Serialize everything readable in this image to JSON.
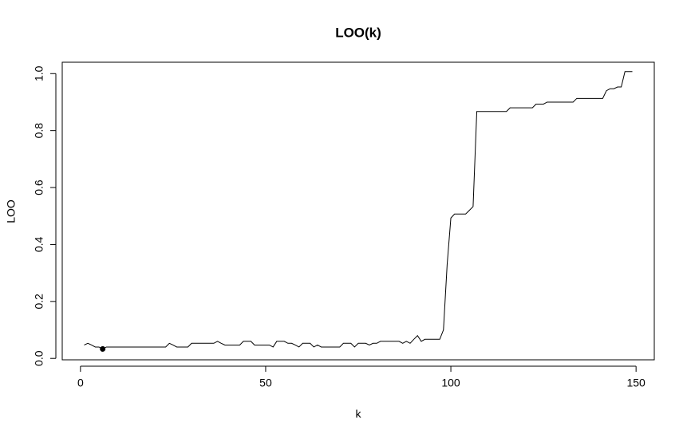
{
  "chart_data": {
    "type": "line",
    "title": "LOO(k)",
    "xlabel": "k",
    "ylabel": "LOO",
    "x": [
      1,
      2,
      3,
      4,
      5,
      6,
      7,
      8,
      9,
      10,
      11,
      12,
      13,
      14,
      15,
      16,
      17,
      18,
      19,
      20,
      21,
      22,
      23,
      24,
      25,
      26,
      27,
      28,
      29,
      30,
      31,
      32,
      33,
      34,
      35,
      36,
      37,
      38,
      39,
      40,
      41,
      42,
      43,
      44,
      45,
      46,
      47,
      48,
      49,
      50,
      51,
      52,
      53,
      54,
      55,
      56,
      57,
      58,
      59,
      60,
      61,
      62,
      63,
      64,
      65,
      66,
      67,
      68,
      69,
      70,
      71,
      72,
      73,
      74,
      75,
      76,
      77,
      78,
      79,
      80,
      81,
      82,
      83,
      84,
      85,
      86,
      87,
      88,
      89,
      90,
      91,
      92,
      93,
      94,
      95,
      96,
      97,
      98,
      99,
      100,
      101,
      102,
      103,
      104,
      105,
      106,
      107,
      108,
      109,
      110,
      111,
      112,
      113,
      114,
      115,
      116,
      117,
      118,
      119,
      120,
      121,
      122,
      123,
      124,
      125,
      126,
      127,
      128,
      129,
      130,
      131,
      132,
      133,
      134,
      135,
      136,
      137,
      138,
      139,
      140,
      141,
      142,
      143,
      144,
      145,
      146,
      147,
      148,
      149
    ],
    "series": [
      {
        "color": "#000000",
        "values": [
          0.047,
          0.053,
          0.047,
          0.04,
          0.04,
          0.033,
          0.04,
          0.04,
          0.04,
          0.04,
          0.04,
          0.04,
          0.04,
          0.04,
          0.04,
          0.04,
          0.04,
          0.04,
          0.04,
          0.04,
          0.04,
          0.04,
          0.04,
          0.053,
          0.047,
          0.04,
          0.04,
          0.04,
          0.04,
          0.053,
          0.053,
          0.053,
          0.053,
          0.053,
          0.053,
          0.053,
          0.06,
          0.053,
          0.047,
          0.047,
          0.047,
          0.047,
          0.047,
          0.06,
          0.06,
          0.06,
          0.047,
          0.047,
          0.047,
          0.047,
          0.047,
          0.04,
          0.06,
          0.06,
          0.06,
          0.053,
          0.053,
          0.047,
          0.04,
          0.053,
          0.053,
          0.053,
          0.04,
          0.047,
          0.04,
          0.04,
          0.04,
          0.04,
          0.04,
          0.04,
          0.053,
          0.053,
          0.053,
          0.04,
          0.053,
          0.053,
          0.053,
          0.047,
          0.053,
          0.053,
          0.06,
          0.06,
          0.06,
          0.06,
          0.06,
          0.06,
          0.053,
          0.06,
          0.053,
          0.067,
          0.08,
          0.06,
          0.067,
          0.067,
          0.067,
          0.067,
          0.067,
          0.1,
          0.33,
          0.493,
          0.507,
          0.507,
          0.507,
          0.507,
          0.52,
          0.533,
          0.867,
          0.867,
          0.867,
          0.867,
          0.867,
          0.867,
          0.867,
          0.867,
          0.867,
          0.88,
          0.88,
          0.88,
          0.88,
          0.88,
          0.88,
          0.88,
          0.893,
          0.893,
          0.893,
          0.9,
          0.9,
          0.9,
          0.9,
          0.9,
          0.9,
          0.9,
          0.9,
          0.913,
          0.913,
          0.913,
          0.913,
          0.913,
          0.913,
          0.913,
          0.913,
          0.94,
          0.947,
          0.947,
          0.953,
          0.953,
          1.007,
          1.007,
          1.007
        ]
      }
    ],
    "point": {
      "x": 6,
      "y": 0.033,
      "color": "#000000"
    },
    "xlim": [
      -4.92,
      154.92
    ],
    "ylim": [
      -0.005,
      1.04
    ],
    "xticks": [
      0,
      50,
      100,
      150
    ],
    "yticks": [
      {
        "value": 0,
        "label": "0.0"
      },
      0.2,
      0.4,
      0.6,
      0.8,
      {
        "value": 1,
        "label": "1.0"
      }
    ]
  }
}
